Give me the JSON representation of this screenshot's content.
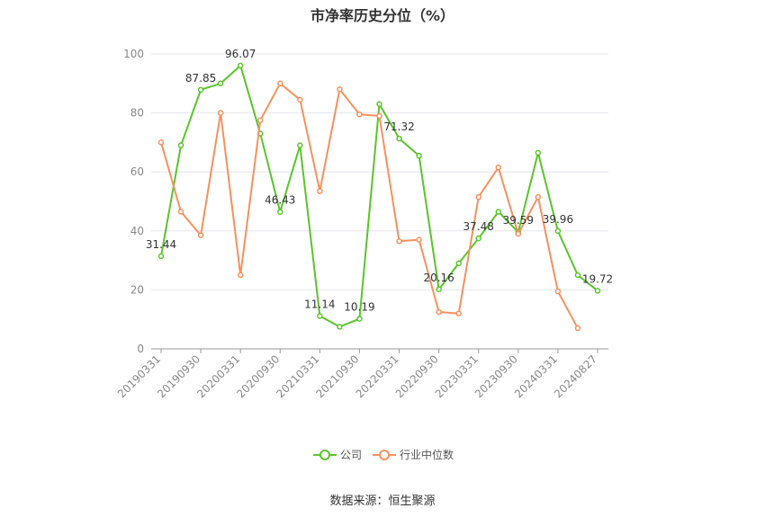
{
  "chart_data": {
    "type": "line",
    "title": "市净率历史分位（%）",
    "ylim": [
      0,
      100
    ],
    "yticks": [
      "0",
      "20",
      "40",
      "60",
      "80",
      "100"
    ],
    "x": [
      "20190331",
      "20190630",
      "20190930",
      "20191231",
      "20200331",
      "20200630",
      "20200930",
      "20201231",
      "20210331",
      "20210630",
      "20210930",
      "20211231",
      "20220331",
      "20220630",
      "20220930",
      "20221231",
      "20230331",
      "20230630",
      "20230930",
      "20231231",
      "20240331",
      "20240630",
      "20240827"
    ],
    "xtick_labels": [
      "20190331",
      "20190930",
      "20200331",
      "20200930",
      "20210331",
      "20210930",
      "20220331",
      "20220930",
      "20230331",
      "20230930",
      "20240331",
      "20240827"
    ],
    "series": [
      {
        "name": "公司",
        "color": "#5ac42b",
        "values": [
          31.44,
          69,
          87.85,
          90,
          96.07,
          73,
          46.43,
          69,
          11.14,
          7.5,
          10.19,
          83,
          71.32,
          65.5,
          20.16,
          29,
          37.48,
          46.5,
          39.59,
          66.5,
          39.96,
          25,
          19.72
        ],
        "labels": [
          "31.44",
          null,
          "87.85",
          null,
          "96.07",
          null,
          "46.43",
          null,
          "11.14",
          null,
          "10.19",
          null,
          "71.32",
          null,
          "20.16",
          null,
          "37.48",
          null,
          "39.59",
          null,
          "39.96",
          null,
          "19.72"
        ]
      },
      {
        "name": "行业中位数",
        "color": "#f5915f",
        "values": [
          70,
          46.5,
          38.5,
          80,
          25,
          77.5,
          90,
          84.5,
          53.5,
          88,
          79.5,
          79,
          36.5,
          37,
          12.5,
          12,
          51.5,
          61.5,
          39,
          51.5,
          19.5,
          7,
          null
        ]
      }
    ],
    "grid": true,
    "legend_position": "bottom"
  },
  "legend": {
    "company": "公司",
    "industry": "行业中位数"
  },
  "source": "数据来源：恒生聚源"
}
